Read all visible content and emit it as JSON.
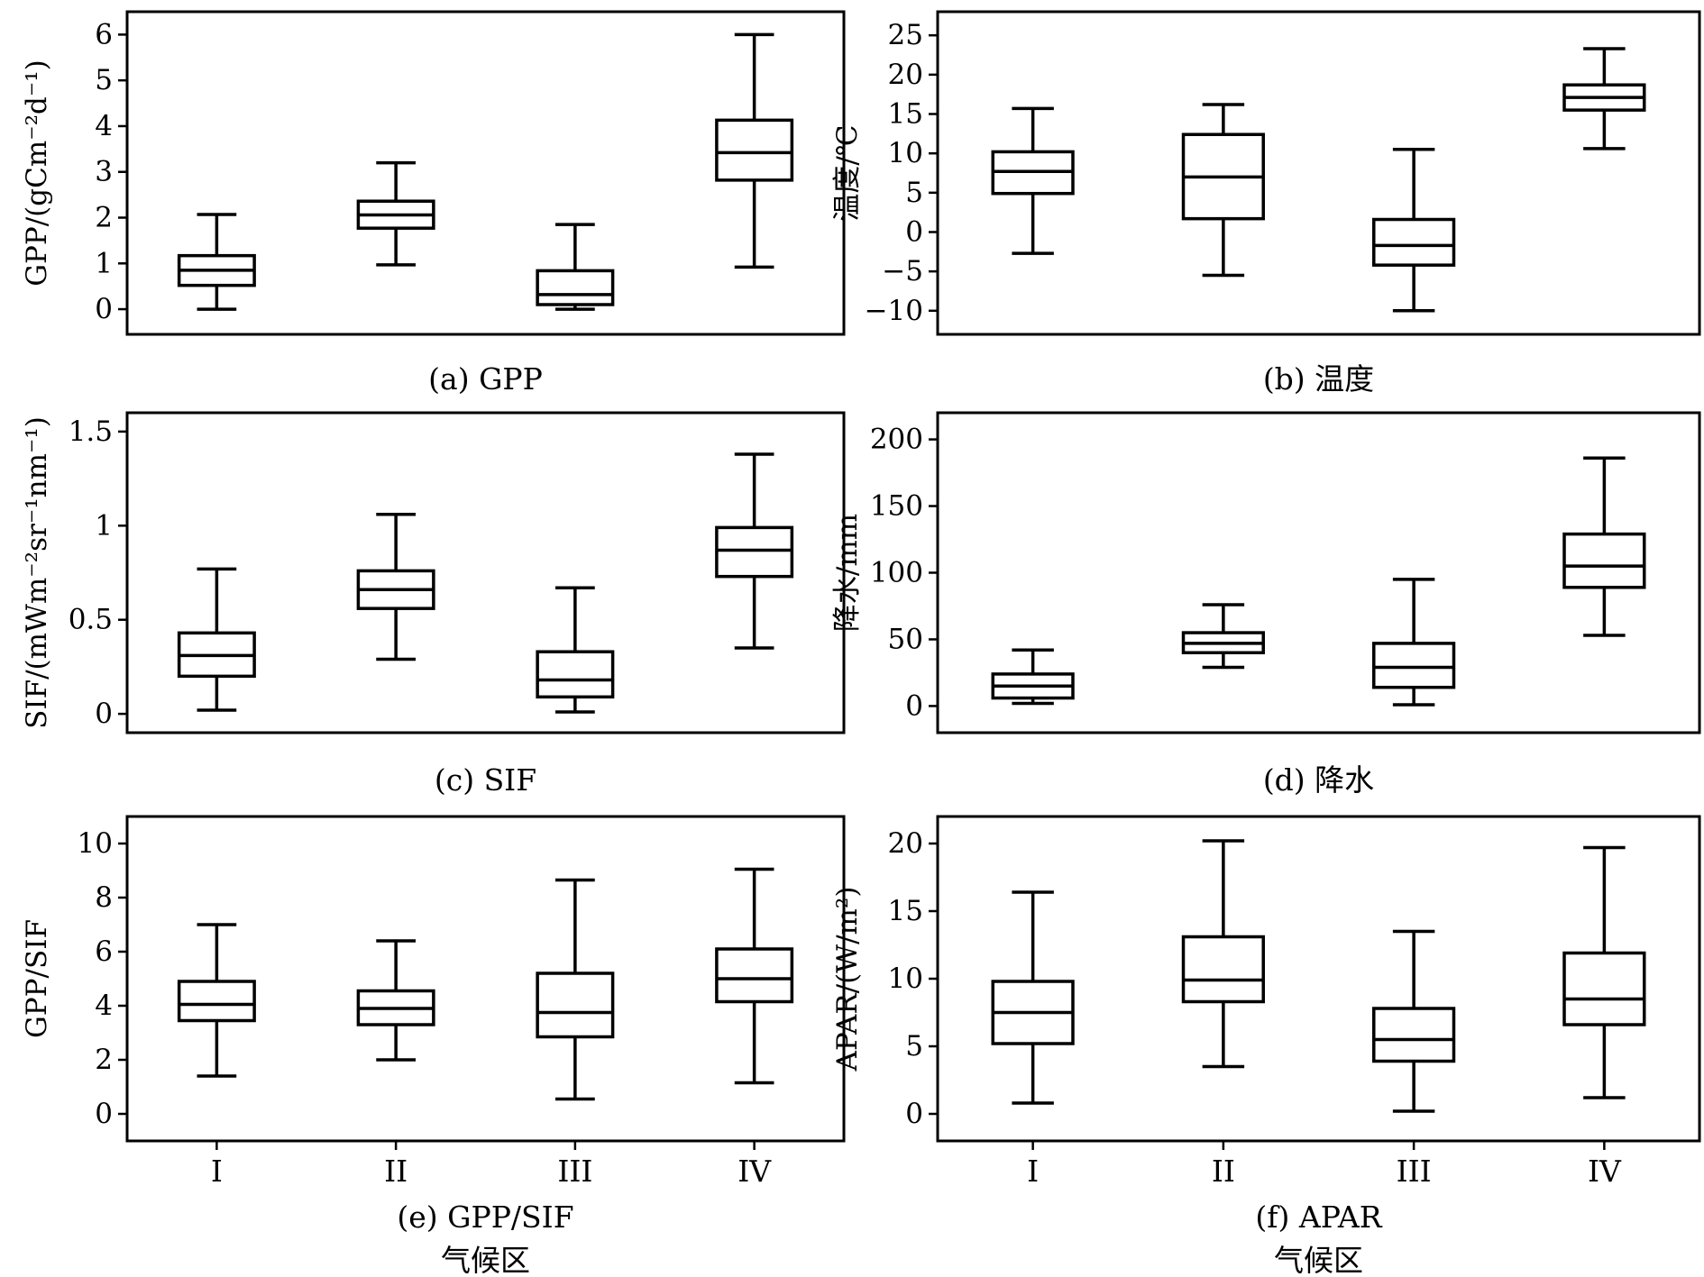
{
  "chart_data": [
    {
      "type": "box",
      "ylabel": "GPP/(gCm⁻²d⁻¹)",
      "caption": "(a) GPP",
      "ylim": [
        -0.55,
        6.5
      ],
      "yticks": [
        0,
        1,
        2,
        3,
        4,
        5,
        6
      ],
      "categories": [
        "I",
        "II",
        "III",
        "IV"
      ],
      "boxes": [
        {
          "min": 0.0,
          "q1": 0.52,
          "median": 0.85,
          "q3": 1.17,
          "max": 2.07
        },
        {
          "min": 0.97,
          "q1": 1.77,
          "median": 2.06,
          "q3": 2.36,
          "max": 3.2
        },
        {
          "min": 0.0,
          "q1": 0.1,
          "median": 0.32,
          "q3": 0.84,
          "max": 1.85
        },
        {
          "min": 0.92,
          "q1": 2.82,
          "median": 3.42,
          "q3": 4.13,
          "max": 6.0
        }
      ]
    },
    {
      "type": "box",
      "ylabel": "温度/℃",
      "caption": "(b) 温度",
      "ylim": [
        -13,
        28
      ],
      "yticks": [
        -10,
        -5,
        0,
        5,
        10,
        15,
        20,
        25
      ],
      "categories": [
        "I",
        "II",
        "III",
        "IV"
      ],
      "boxes": [
        {
          "min": -2.7,
          "q1": 4.9,
          "median": 7.7,
          "q3": 10.2,
          "max": 15.7
        },
        {
          "min": -5.5,
          "q1": 1.7,
          "median": 7.0,
          "q3": 12.4,
          "max": 16.2
        },
        {
          "min": -10.0,
          "q1": -4.2,
          "median": -1.7,
          "q3": 1.6,
          "max": 10.5
        },
        {
          "min": 10.6,
          "q1": 15.5,
          "median": 17.1,
          "q3": 18.7,
          "max": 23.3
        }
      ]
    },
    {
      "type": "box",
      "ylabel": "SIF/(mWm⁻²sr⁻¹nm⁻¹)",
      "caption": "(c) SIF",
      "ylim": [
        -0.1,
        1.6
      ],
      "yticks": [
        0,
        0.5,
        1,
        1.5
      ],
      "ytick_labels": [
        "0",
        "0.5",
        "1",
        "1.5"
      ],
      "categories": [
        "I",
        "II",
        "III",
        "IV"
      ],
      "boxes": [
        {
          "min": 0.02,
          "q1": 0.2,
          "median": 0.31,
          "q3": 0.43,
          "max": 0.77
        },
        {
          "min": 0.29,
          "q1": 0.56,
          "median": 0.66,
          "q3": 0.76,
          "max": 1.06
        },
        {
          "min": 0.01,
          "q1": 0.09,
          "median": 0.18,
          "q3": 0.33,
          "max": 0.67
        },
        {
          "min": 0.35,
          "q1": 0.73,
          "median": 0.87,
          "q3": 0.99,
          "max": 1.38
        }
      ]
    },
    {
      "type": "box",
      "ylabel": "降水/mm",
      "caption": "(d) 降水",
      "ylim": [
        -20,
        220
      ],
      "yticks": [
        0,
        50,
        100,
        150,
        200
      ],
      "categories": [
        "I",
        "II",
        "III",
        "IV"
      ],
      "boxes": [
        {
          "min": 2,
          "q1": 6,
          "median": 15,
          "q3": 24,
          "max": 42
        },
        {
          "min": 29,
          "q1": 40,
          "median": 47,
          "q3": 55,
          "max": 76
        },
        {
          "min": 1,
          "q1": 14,
          "median": 29,
          "q3": 47,
          "max": 95
        },
        {
          "min": 53,
          "q1": 89,
          "median": 105,
          "q3": 129,
          "max": 186
        }
      ]
    },
    {
      "type": "box",
      "ylabel": "GPP/SIF",
      "caption": "(e) GPP/SIF",
      "xlabel": "气候区",
      "ylim": [
        -1.0,
        11.0
      ],
      "yticks": [
        0,
        2,
        4,
        6,
        8,
        10
      ],
      "categories": [
        "I",
        "II",
        "III",
        "IV"
      ],
      "boxes": [
        {
          "min": 1.4,
          "q1": 3.45,
          "median": 4.05,
          "q3": 4.9,
          "max": 7.0
        },
        {
          "min": 2.0,
          "q1": 3.3,
          "median": 3.9,
          "q3": 4.55,
          "max": 6.4
        },
        {
          "min": 0.55,
          "q1": 2.85,
          "median": 3.75,
          "q3": 5.2,
          "max": 8.65
        },
        {
          "min": 1.15,
          "q1": 4.15,
          "median": 5.0,
          "q3": 6.1,
          "max": 9.05
        }
      ]
    },
    {
      "type": "box",
      "ylabel": "APAR/(W/m²)",
      "caption": "(f) APAR",
      "xlabel": "气候区",
      "ylim": [
        -2.0,
        22.0
      ],
      "yticks": [
        0,
        5,
        10,
        15,
        20
      ],
      "categories": [
        "I",
        "II",
        "III",
        "IV"
      ],
      "boxes": [
        {
          "min": 0.8,
          "q1": 5.2,
          "median": 7.5,
          "q3": 9.8,
          "max": 16.4
        },
        {
          "min": 3.5,
          "q1": 8.3,
          "median": 9.9,
          "q3": 13.1,
          "max": 20.2
        },
        {
          "min": 0.2,
          "q1": 3.9,
          "median": 5.5,
          "q3": 7.8,
          "max": 13.5
        },
        {
          "min": 1.2,
          "q1": 6.6,
          "median": 8.5,
          "q3": 11.9,
          "max": 19.7
        }
      ]
    }
  ]
}
